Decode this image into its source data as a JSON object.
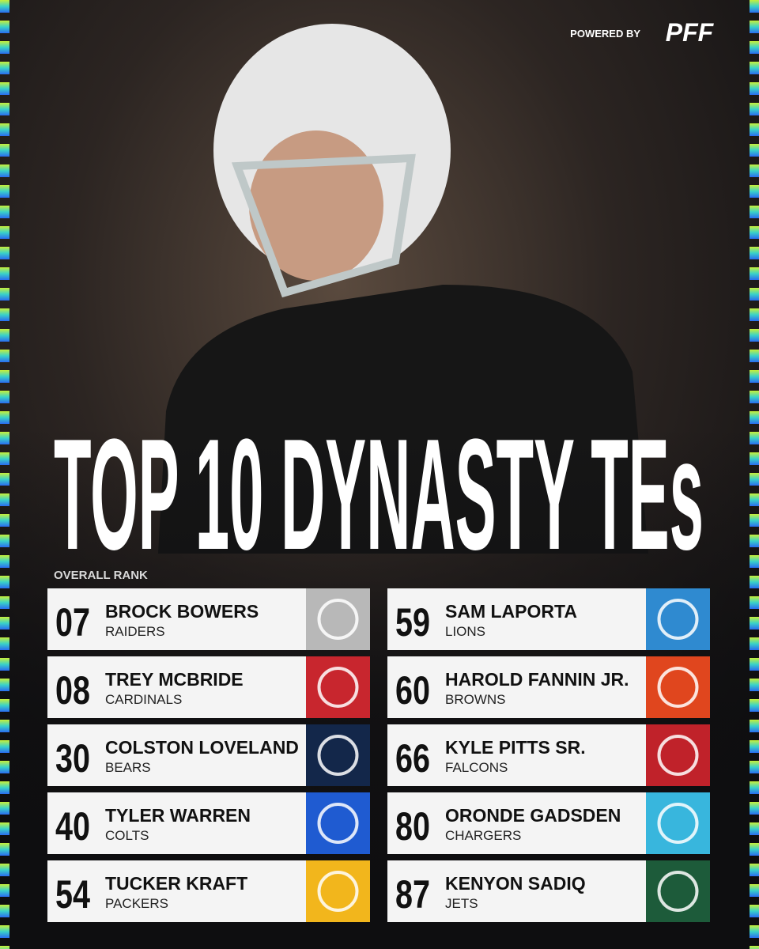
{
  "header": {
    "powered_by": "POWERED BY",
    "brand": "PFF"
  },
  "title": "TOP 10 DYNASTY TEs",
  "subtitle": "OVERALL RANK",
  "players": [
    {
      "rank": "07",
      "name": "BROCK BOWERS",
      "team": "RAIDERS"
    },
    {
      "rank": "08",
      "name": "TREY MCBRIDE",
      "team": "CARDINALS"
    },
    {
      "rank": "30",
      "name": "COLSTON LOVELAND",
      "team": "BEARS"
    },
    {
      "rank": "40",
      "name": "TYLER WARREN",
      "team": "COLTS"
    },
    {
      "rank": "54",
      "name": "TUCKER KRAFT",
      "team": "PACKERS"
    },
    {
      "rank": "59",
      "name": "SAM LAPORTA",
      "team": "LIONS"
    },
    {
      "rank": "60",
      "name": "HAROLD FANNIN JR.",
      "team": "BROWNS"
    },
    {
      "rank": "66",
      "name": "KYLE PITTS SR.",
      "team": "FALCONS"
    },
    {
      "rank": "80",
      "name": "ORONDE GADSDEN",
      "team": "CHARGERS"
    },
    {
      "rank": "87",
      "name": "KENYON SADIQ",
      "team": "JETS"
    }
  ]
}
